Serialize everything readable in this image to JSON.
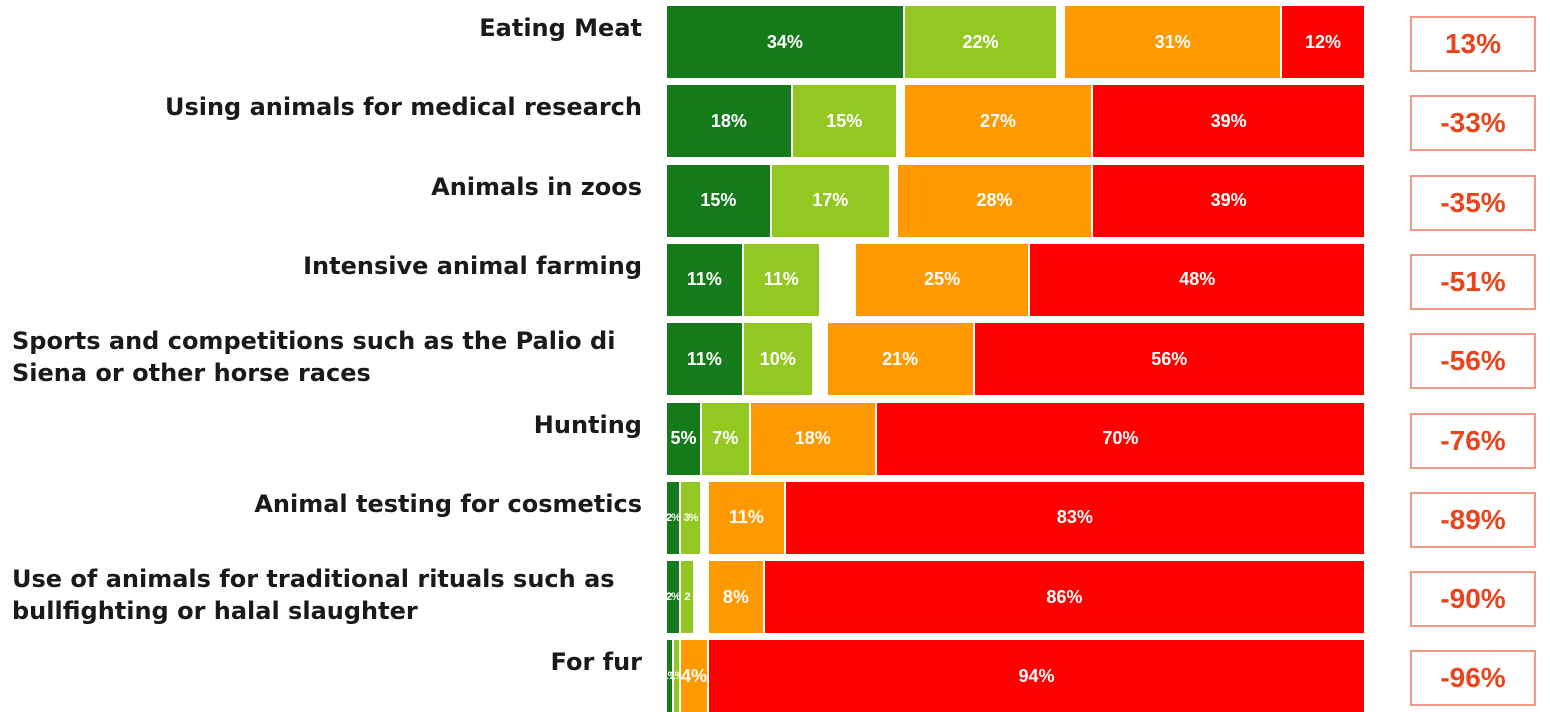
{
  "chart_data": {
    "type": "bar",
    "orientation": "horizontal",
    "stacked": true,
    "categories": [
      "Eating Meat",
      "Using animals for medical research",
      "Animals in zoos",
      "Intensive animal farming",
      "Sports and competitions such as the Palio di Siena or other horse races",
      "Hunting",
      "Animal testing for cosmetics",
      "Use of animals for traditional rituals such as bullfighting or halal slaughter",
      "For fur"
    ],
    "category_lines": [
      [
        "Eating Meat"
      ],
      [
        "Using animals for medical research"
      ],
      [
        "Animals in zoos"
      ],
      [
        "Intensive animal farming"
      ],
      [
        "Sports and competitions such as the Palio di",
        "Siena or other horse races"
      ],
      [
        "Hunting"
      ],
      [
        "Animal testing for cosmetics"
      ],
      [
        "Use of animals for traditional rituals such as",
        "bullfighting or halal slaughter"
      ],
      [
        "For fur"
      ]
    ],
    "series": [
      {
        "color": "#157a1a",
        "values": [
          34,
          18,
          15,
          11,
          11,
          5,
          2,
          2,
          1
        ],
        "labels": [
          "34%",
          "18%",
          "15%",
          "11%",
          "11%",
          "5%",
          "2%",
          "2%",
          "1%"
        ]
      },
      {
        "color": "#93c721",
        "values": [
          22,
          15,
          17,
          11,
          10,
          7,
          3,
          2,
          1
        ],
        "labels": [
          "22%",
          "15%",
          "17%",
          "11%",
          "10%",
          "7%",
          "3%",
          "2",
          "1%"
        ]
      },
      {
        "color": "#ffffff",
        "values": [
          1,
          1,
          1,
          5,
          2,
          0,
          1,
          2,
          0
        ],
        "labels": [
          "",
          "",
          "",
          "",
          "",
          "",
          "",
          "",
          ""
        ]
      },
      {
        "color": "#ff9900",
        "values": [
          31,
          27,
          28,
          25,
          21,
          18,
          11,
          8,
          4
        ],
        "labels": [
          "31%",
          "27%",
          "28%",
          "25%",
          "21%",
          "18%",
          "11%",
          "8%",
          "4%"
        ]
      },
      {
        "color": "#ff0000",
        "values": [
          12,
          39,
          39,
          48,
          56,
          70,
          83,
          86,
          94
        ],
        "labels": [
          "12%",
          "39%",
          "39%",
          "48%",
          "56%",
          "70%",
          "83%",
          "86%",
          "94%"
        ]
      }
    ],
    "net_values": [
      "13%",
      "-33%",
      "-35%",
      "-51%",
      "-56%",
      "-76%",
      "-89%",
      "-90%",
      "-96%"
    ],
    "net_color": "#e8451c",
    "xlim": [
      0,
      100
    ],
    "title": "",
    "xlabel": "",
    "ylabel": ""
  }
}
